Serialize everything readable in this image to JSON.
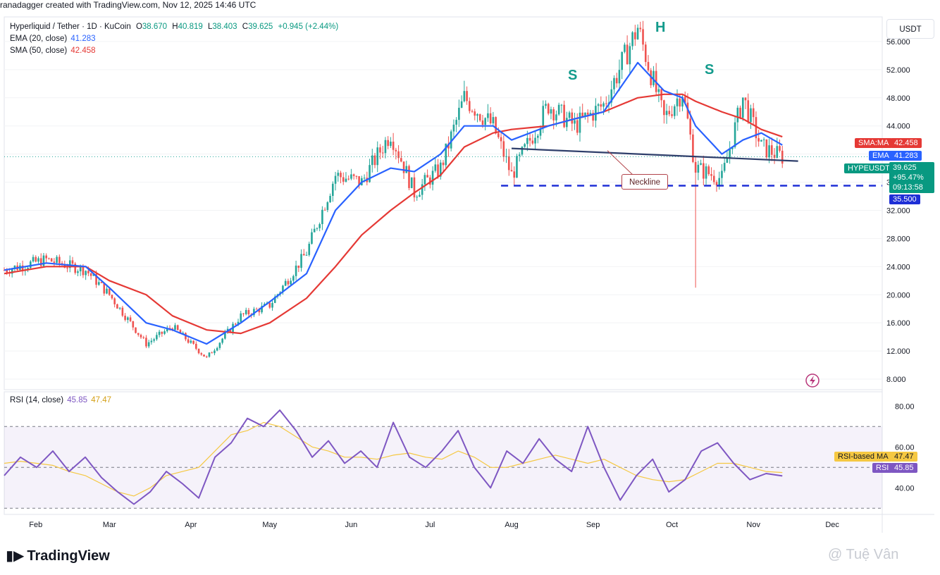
{
  "header": {
    "author_line": "ranadagger created with TradingView.com, Nov 12, 2025 14:46 UTC"
  },
  "currency_button": "USDT",
  "legend": {
    "symbol_title": "Hyperliquid / Tether · 1D · KuCoin",
    "open_label": "O",
    "open": "38.670",
    "high_label": "H",
    "high": "40.819",
    "low_label": "L",
    "low": "38.403",
    "close_label": "C",
    "close": "39.625",
    "change": "+0.945 (+2.44%)",
    "ema_label": "EMA (20, close)",
    "ema_value": "41.283",
    "sma_label": "SMA (50, close)",
    "sma_value": "42.458",
    "rsi_label": "RSI (14, close)",
    "rsi_value": "45.85",
    "rsi_ma_value": "47.47"
  },
  "annotations": {
    "left_shoulder": "S",
    "head": "H",
    "right_shoulder": "S",
    "neckline": "Neckline"
  },
  "price_tags": {
    "sma_label": "SMA:MA",
    "sma_value": "42.458",
    "ema_label": "EMA",
    "ema_value": "41.283",
    "symbol_label": "HYPEUSDT",
    "symbol_value": "39.625",
    "pct_change": "+95.47%",
    "countdown": "09:13:58",
    "support_level": "35.500",
    "rsi_ma_label": "RSI-based MA",
    "rsi_ma_value": "47.47",
    "rsi_label": "RSI",
    "rsi_value": "45.85"
  },
  "footer": {
    "logo_text": "TradingView",
    "watermark": "@ Tuệ Vân"
  },
  "colors": {
    "up": "#26a69a",
    "down": "#ef5350",
    "ema": "#2962ff",
    "sma": "#e53935",
    "rsi": "#7e57c2",
    "rsi_ma": "#f5c842",
    "support": "#1e2fd6",
    "neckline": "#2f3f6b"
  },
  "chart_data": {
    "type": "candlestick",
    "symbol": "HYPEUSDT",
    "x_axis_labels": [
      "Feb",
      "Mar",
      "Apr",
      "May",
      "Jun",
      "Jul",
      "Aug",
      "Sep",
      "Oct",
      "Nov",
      "Dec"
    ],
    "y_axis_ticks": [
      "56.000",
      "52.000",
      "48.000",
      "44.000",
      "40.000",
      "36.000",
      "32.000",
      "28.000",
      "24.000",
      "20.000",
      "16.000",
      "12.000",
      "8.000"
    ],
    "ylim": [
      6.5,
      59.5
    ],
    "close_series_approx": [
      {
        "date": "2025-01-20",
        "close": 23.5
      },
      {
        "date": "2025-02-05",
        "close": 25.0
      },
      {
        "date": "2025-02-20",
        "close": 23.5
      },
      {
        "date": "2025-03-01",
        "close": 20.0
      },
      {
        "date": "2025-03-15",
        "close": 13.0
      },
      {
        "date": "2025-03-25",
        "close": 15.5
      },
      {
        "date": "2025-04-07",
        "close": 11.0
      },
      {
        "date": "2025-04-20",
        "close": 17.0
      },
      {
        "date": "2025-05-01",
        "close": 18.5
      },
      {
        "date": "2025-05-15",
        "close": 26.0
      },
      {
        "date": "2025-05-26",
        "close": 37.0
      },
      {
        "date": "2025-06-05",
        "close": 36.0
      },
      {
        "date": "2025-06-16",
        "close": 43.0
      },
      {
        "date": "2025-06-25",
        "close": 34.5
      },
      {
        "date": "2025-07-05",
        "close": 38.0
      },
      {
        "date": "2025-07-14",
        "close": 48.0
      },
      {
        "date": "2025-07-25",
        "close": 44.0
      },
      {
        "date": "2025-08-01",
        "close": 37.0
      },
      {
        "date": "2025-08-15",
        "close": 47.0
      },
      {
        "date": "2025-08-25",
        "close": 44.0
      },
      {
        "date": "2025-09-05",
        "close": 47.0
      },
      {
        "date": "2025-09-18",
        "close": 58.0
      },
      {
        "date": "2025-09-28",
        "close": 45.0
      },
      {
        "date": "2025-10-05",
        "close": 49.0
      },
      {
        "date": "2025-10-10",
        "close": 38.0
      },
      {
        "date": "2025-10-20",
        "close": 36.5
      },
      {
        "date": "2025-10-28",
        "close": 48.0
      },
      {
        "date": "2025-11-04",
        "close": 41.0
      },
      {
        "date": "2025-11-12",
        "close": 39.625
      }
    ],
    "wick_low_oct10": 21.0,
    "ema20_approx": [
      23.5,
      24.5,
      24.0,
      21.0,
      16.0,
      15.0,
      13.0,
      16.0,
      19.0,
      23.0,
      32.0,
      36.0,
      38.0,
      37.5,
      40.0,
      44.0,
      44.0,
      42.0,
      44.0,
      45.0,
      46.0,
      53.0,
      49.0,
      48.0,
      44.0,
      40.0,
      42.0,
      43.0,
      41.283
    ],
    "sma50_approx": [
      23.0,
      24.0,
      24.0,
      22.0,
      20.0,
      17.0,
      15.0,
      14.5,
      16.0,
      19.5,
      24.0,
      28.5,
      32.0,
      34.5,
      37.0,
      41.0,
      43.0,
      43.5,
      44.0,
      45.0,
      46.0,
      48.0,
      48.5,
      48.5,
      47.5,
      46.0,
      45.0,
      43.5,
      42.458
    ],
    "neckline": {
      "start": {
        "date": "2025-08-01",
        "value": 40.8
      },
      "end": {
        "date": "2025-11-18",
        "value": 39.0
      }
    },
    "support_line": 35.5,
    "rsi": {
      "label": "RSI (14, close)",
      "ylim": [
        27,
        87
      ],
      "ticks": [
        "80.00",
        "60.00",
        "40.00"
      ],
      "upper_band": 70,
      "middle_band": 50,
      "lower_band": 30,
      "values_approx": [
        46,
        55,
        50,
        58,
        48,
        55,
        45,
        38,
        32,
        38,
        48,
        42,
        35,
        55,
        62,
        74,
        70,
        78,
        68,
        55,
        63,
        52,
        58,
        50,
        72,
        55,
        50,
        58,
        68,
        50,
        40,
        58,
        52,
        64,
        54,
        48,
        70,
        50,
        34,
        46,
        54,
        38,
        44,
        58,
        62,
        52,
        44,
        47,
        45.85
      ],
      "ma_values_approx": [
        52,
        53,
        52,
        51,
        48,
        46,
        42,
        38,
        36,
        40,
        46,
        48,
        50,
        58,
        66,
        68,
        72,
        70,
        65,
        60,
        58,
        55,
        55,
        54,
        56,
        57,
        55,
        54,
        58,
        55,
        50,
        50,
        52,
        54,
        56,
        54,
        52,
        54,
        50,
        46,
        44,
        43,
        44,
        48,
        52,
        52,
        50,
        48,
        47.47
      ]
    }
  }
}
